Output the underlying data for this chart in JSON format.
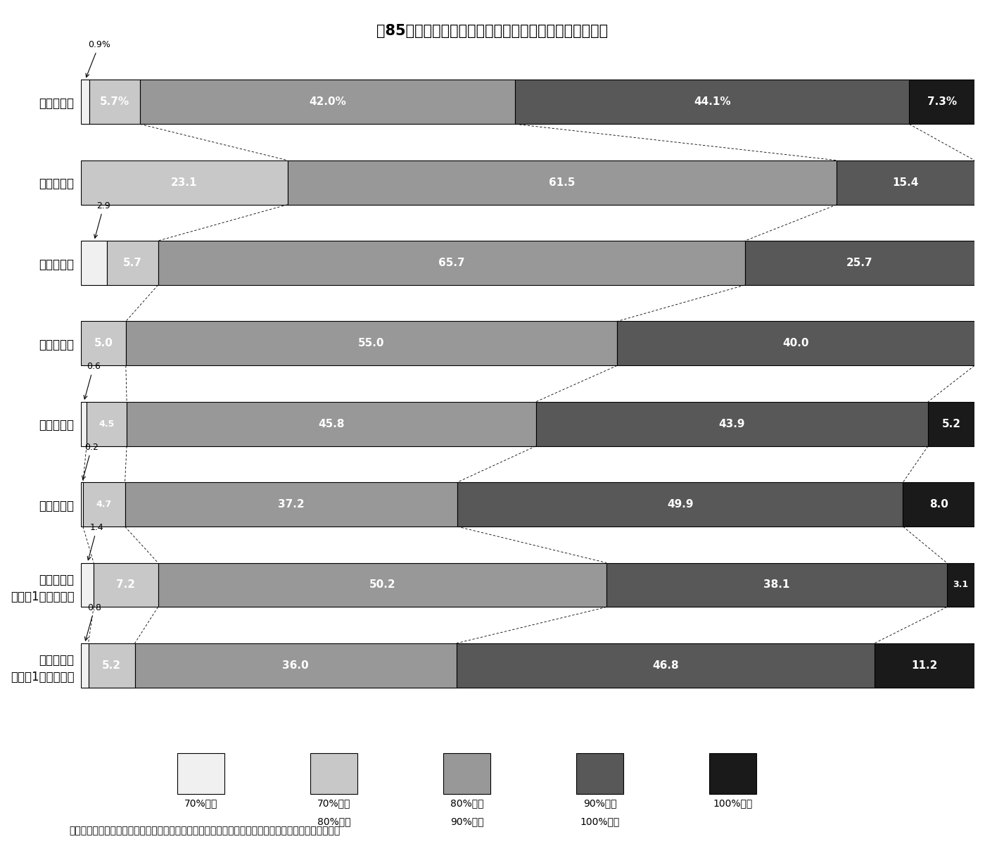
{
  "title": "第85図　市町村の規模別経常収支比率の状況（構成比）",
  "categories": [
    "市町村合計",
    "大　都　市",
    "中　核　市",
    "特　例　市",
    "中　都　市",
    "小　都　市",
    "町　　　村\n（人口1万人以上）",
    "町　　　村\n（人口1万人未満）"
  ],
  "data": [
    [
      0.9,
      5.7,
      42.0,
      44.1,
      7.3
    ],
    [
      0.0,
      23.1,
      61.5,
      15.4,
      0.0
    ],
    [
      2.9,
      5.7,
      65.7,
      25.7,
      0.0
    ],
    [
      0.0,
      5.0,
      55.0,
      40.0,
      0.0
    ],
    [
      0.6,
      4.5,
      45.8,
      43.9,
      5.2
    ],
    [
      0.2,
      4.7,
      37.2,
      49.9,
      8.0
    ],
    [
      1.4,
      7.2,
      50.2,
      38.1,
      3.1
    ],
    [
      0.8,
      5.2,
      36.0,
      46.8,
      11.2
    ]
  ],
  "colors": [
    "#f0f0f0",
    "#c8c8c8",
    "#989898",
    "#585858",
    "#1a1a1a"
  ],
  "legend_labels": [
    "70%未満",
    "70%以上\n80%未満",
    "80%以上\n90%未満",
    "90%以上\n100%未満",
    "100%以上"
  ],
  "note": "（注）　「市町村合計」における団体は、大都市、中核市、特例市、中都市、小都市及び町村である。",
  "ann_info": [
    [
      0,
      0.9,
      "0.9%"
    ],
    [
      2,
      2.9,
      "2.9"
    ],
    [
      4,
      0.6,
      "0.6"
    ],
    [
      5,
      0.2,
      "0.2"
    ],
    [
      6,
      1.4,
      "1.4"
    ],
    [
      7,
      0.8,
      "0.8"
    ]
  ],
  "bar_height": 0.55,
  "figsize": [
    14.0,
    12.09
  ],
  "dpi": 100
}
